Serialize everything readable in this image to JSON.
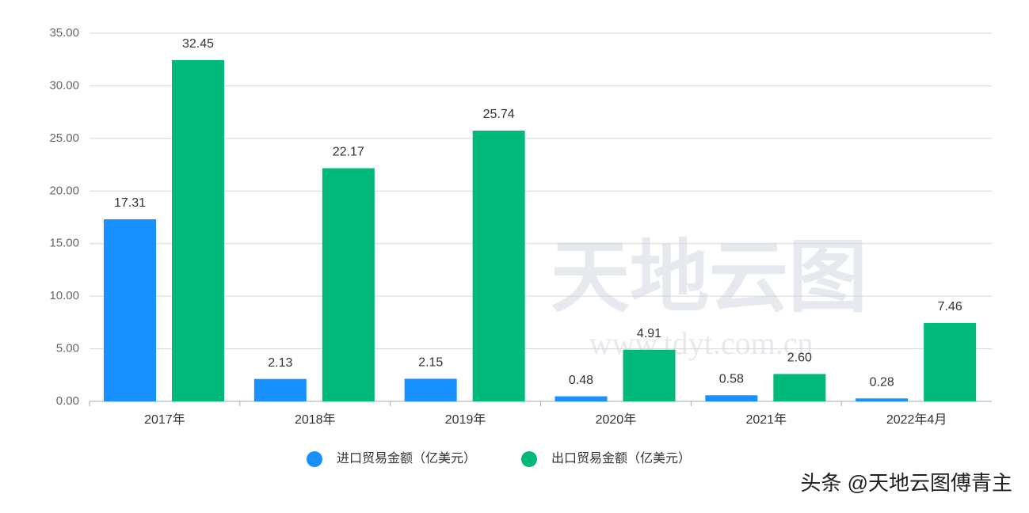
{
  "chart_data": {
    "type": "bar",
    "categories": [
      "2017年",
      "2018年",
      "2019年",
      "2020年",
      "2021年",
      "2022年4月"
    ],
    "series": [
      {
        "name": "进口贸易金额（亿美元）",
        "color": "#1890ff",
        "values": [
          17.31,
          2.13,
          2.15,
          0.48,
          0.58,
          0.28
        ],
        "value_labels": [
          "17.31",
          "2.13",
          "2.15",
          "0.48",
          "0.58",
          "0.28"
        ]
      },
      {
        "name": "出口贸易金额（亿美元）",
        "color": "#00b97a",
        "values": [
          32.45,
          22.17,
          25.74,
          4.91,
          2.6,
          7.46
        ],
        "value_labels": [
          "32.45",
          "22.17",
          "25.74",
          "4.91",
          "2.60",
          "7.46"
        ]
      }
    ],
    "ylim": [
      0,
      35
    ],
    "yticks": [
      {
        "value": 0,
        "label": "0.00"
      },
      {
        "value": 5,
        "label": "5.00"
      },
      {
        "value": 10,
        "label": "10.00"
      },
      {
        "value": 15,
        "label": "15.00"
      },
      {
        "value": 20,
        "label": "20.00"
      },
      {
        "value": 25,
        "label": "25.00"
      },
      {
        "value": 30,
        "label": "30.00"
      },
      {
        "value": 35,
        "label": "35.00"
      }
    ],
    "grid": true,
    "legend": "bottom",
    "watermarks": [
      "天地云图",
      "www.tdyt.com.cn"
    ],
    "credit": "头条 @天地云图傅青主"
  }
}
